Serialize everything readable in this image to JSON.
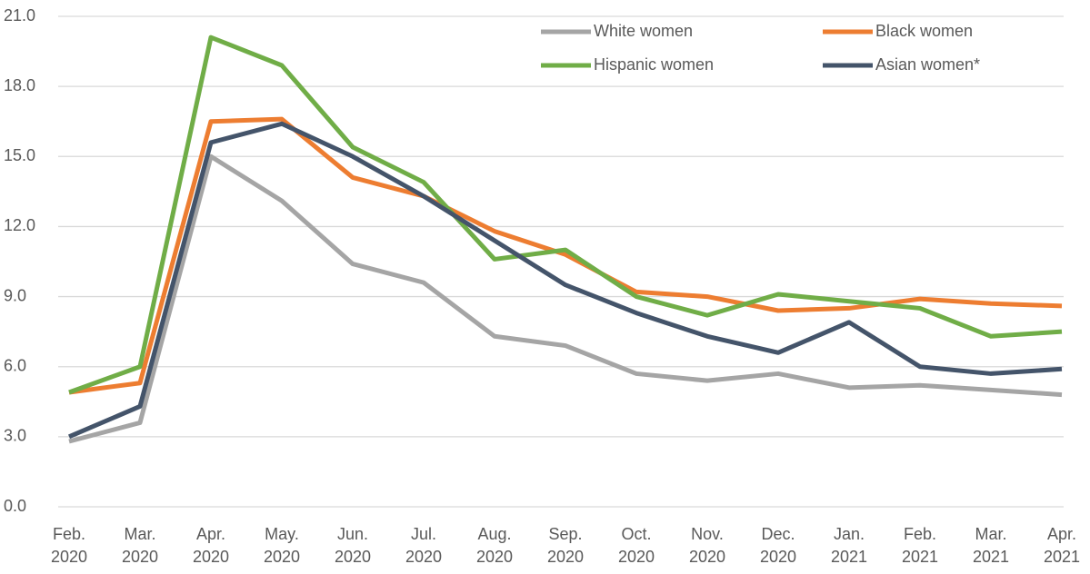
{
  "chart_data": {
    "type": "line",
    "categories": [
      "Feb. 2020",
      "Mar. 2020",
      "Apr. 2020",
      "May. 2020",
      "Jun. 2020",
      "Jul. 2020",
      "Aug. 2020",
      "Sep. 2020",
      "Oct. 2020",
      "Nov. 2020",
      "Dec. 2020",
      "Jan. 2021",
      "Feb. 2021",
      "Mar. 2021",
      "Apr. 2021"
    ],
    "series": [
      {
        "name": "White women",
        "color": "#a5a5a5",
        "values": [
          2.8,
          3.6,
          15.0,
          13.1,
          10.4,
          9.6,
          7.3,
          6.9,
          5.7,
          5.4,
          5.7,
          5.1,
          5.2,
          5.0,
          4.8
        ]
      },
      {
        "name": "Black women",
        "color": "#ed7d31",
        "values": [
          4.9,
          5.3,
          16.5,
          16.6,
          14.1,
          13.3,
          11.8,
          10.8,
          9.2,
          9.0,
          8.4,
          8.5,
          8.9,
          8.7,
          8.6
        ]
      },
      {
        "name": "Hispanic women",
        "color": "#70ad47",
        "values": [
          4.9,
          6.0,
          20.1,
          18.9,
          15.4,
          13.9,
          10.6,
          11.0,
          9.0,
          8.2,
          9.1,
          8.8,
          8.5,
          7.3,
          7.5
        ]
      },
      {
        "name": "Asian women*",
        "color": "#44546a",
        "values": [
          3.0,
          4.3,
          15.6,
          16.4,
          15.0,
          13.3,
          11.4,
          9.5,
          8.3,
          7.3,
          6.6,
          7.9,
          6.0,
          5.7,
          5.9
        ]
      }
    ],
    "ylim": [
      0,
      21
    ],
    "yticks": [
      {
        "value": 0,
        "label": "0.0"
      },
      {
        "value": 3,
        "label": "3.0"
      },
      {
        "value": 6,
        "label": "6.0"
      },
      {
        "value": 9,
        "label": "9.0"
      },
      {
        "value": 12,
        "label": "12.0"
      },
      {
        "value": 15,
        "label": "15.0"
      },
      {
        "value": 18,
        "label": "18.0"
      },
      {
        "value": 21,
        "label": "21.0"
      }
    ],
    "grid": true
  }
}
